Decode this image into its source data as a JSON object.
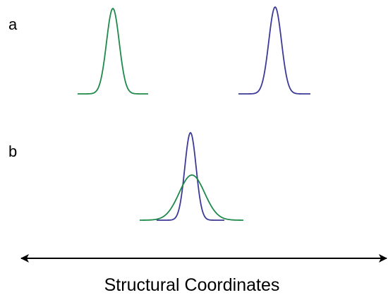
{
  "panels": [
    {
      "label": "a"
    },
    {
      "label": "b"
    }
  ],
  "axis": {
    "label": "Structural Coordinates"
  }
}
